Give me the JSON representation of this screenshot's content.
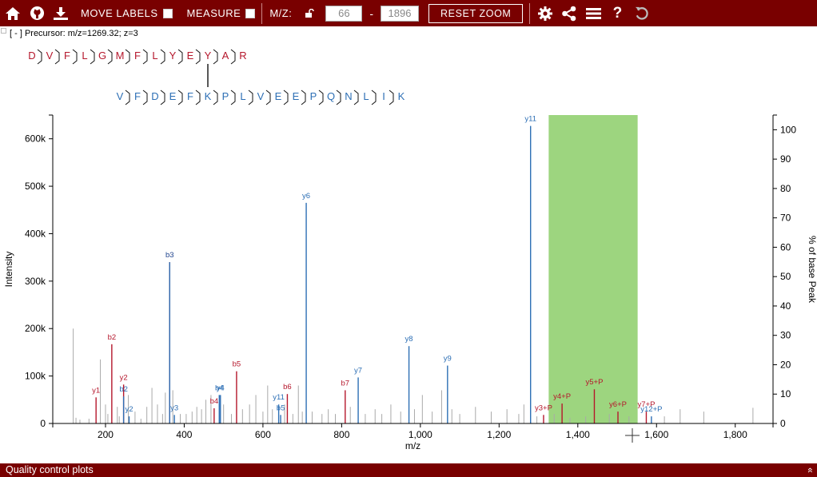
{
  "toolbar": {
    "move_labels": "MOVE LABELS",
    "measure": "MEASURE",
    "mz_label": "M/Z:",
    "mz_min": "66",
    "mz_max": "1896",
    "dash": "-",
    "reset_zoom": "RESET ZOOM",
    "help": "?"
  },
  "precursor": "[ - ]  Precursor: m/z=1269.32; z=3",
  "footer": {
    "title": "Quality control plots",
    "chevron": "«"
  },
  "peptide1": [
    "D",
    "V",
    "F",
    "L",
    "G",
    "M",
    "F",
    "L",
    "Y",
    "E",
    "Y",
    "A",
    "R"
  ],
  "peptide2": [
    "V",
    "F",
    "D",
    "E",
    "F",
    "K",
    "P",
    "L",
    "V",
    "E",
    "E",
    "P",
    "Q",
    "N",
    "L",
    "I",
    "K"
  ],
  "colors": {
    "red": "#b5172c",
    "blue": "#2d6fb5",
    "grey": "#a9a9a9",
    "highlight": "#9dd57f",
    "brand": "#790000"
  },
  "chart_data": {
    "type": "bar",
    "xlabel": "m/z",
    "ylabel": "Intensity",
    "y2label": "% of base Peak",
    "xlim": [
      66,
      1896
    ],
    "ylim": [
      0,
      650000
    ],
    "y2lim": [
      0,
      105
    ],
    "x_ticks": [
      "200",
      "400",
      "600",
      "800",
      "1,000",
      "1,200",
      "1,400",
      "1,600",
      "1,800"
    ],
    "x_tick_values": [
      200,
      400,
      600,
      800,
      1000,
      1200,
      1400,
      1600,
      1800
    ],
    "y_ticks": [
      "0",
      "100k",
      "200k",
      "300k",
      "400k",
      "500k",
      "600k"
    ],
    "y_tick_values": [
      0,
      100000,
      200000,
      300000,
      400000,
      500000,
      600000
    ],
    "y2_ticks": [
      "0",
      "10",
      "20",
      "30",
      "40",
      "50",
      "60",
      "70",
      "80",
      "90",
      "100"
    ],
    "y2_tick_values": [
      0,
      10,
      20,
      30,
      40,
      50,
      60,
      70,
      80,
      90,
      100
    ],
    "highlight_range": [
      1326,
      1552
    ],
    "labeled_peaks": [
      {
        "label": "y1",
        "mz": 176,
        "intensity": 55000,
        "color": "red"
      },
      {
        "label": "b2",
        "mz": 216,
        "intensity": 167000,
        "color": "red"
      },
      {
        "label": "y2",
        "mz": 246,
        "intensity": 82000,
        "color": "red"
      },
      {
        "label": "b2",
        "mz": 246,
        "intensity": 57000,
        "color": "blue"
      },
      {
        "label": "y2",
        "mz": 260,
        "intensity": 15000,
        "color": "blue"
      },
      {
        "label": "b3",
        "mz": 363,
        "intensity": 340000,
        "color": "red"
      },
      {
        "label": "b3",
        "mz": 363,
        "intensity": 340000,
        "color": "blue"
      },
      {
        "label": "y3",
        "mz": 375,
        "intensity": 18000,
        "color": "blue"
      },
      {
        "label": "b4",
        "mz": 476,
        "intensity": 32000,
        "color": "red"
      },
      {
        "label": "b4",
        "mz": 489,
        "intensity": 60000,
        "color": "blue"
      },
      {
        "label": "y4",
        "mz": 492,
        "intensity": 60000,
        "color": "blue"
      },
      {
        "label": "b5",
        "mz": 533,
        "intensity": 110000,
        "color": "red"
      },
      {
        "label": "y11",
        "mz": 640,
        "intensity": 40000,
        "color": "blue"
      },
      {
        "label": "b5",
        "mz": 645,
        "intensity": 18000,
        "color": "blue"
      },
      {
        "label": "b6",
        "mz": 662,
        "intensity": 62000,
        "color": "red"
      },
      {
        "label": "y6",
        "mz": 710,
        "intensity": 465000,
        "color": "blue"
      },
      {
        "label": "b7",
        "mz": 809,
        "intensity": 70000,
        "color": "red"
      },
      {
        "label": "y7",
        "mz": 842,
        "intensity": 97000,
        "color": "blue"
      },
      {
        "label": "y8",
        "mz": 971,
        "intensity": 163000,
        "color": "blue"
      },
      {
        "label": "y9",
        "mz": 1069,
        "intensity": 122000,
        "color": "blue"
      },
      {
        "label": "y11",
        "mz": 1280,
        "intensity": 627000,
        "color": "blue"
      },
      {
        "label": "y3+P",
        "mz": 1313,
        "intensity": 18000,
        "color": "red"
      },
      {
        "label": "y4+P",
        "mz": 1360,
        "intensity": 42000,
        "color": "red"
      },
      {
        "label": "y5+P",
        "mz": 1442,
        "intensity": 72000,
        "color": "red"
      },
      {
        "label": "y6+P",
        "mz": 1502,
        "intensity": 25000,
        "color": "red"
      },
      {
        "label": "y7+P",
        "mz": 1574,
        "intensity": 25000,
        "color": "red"
      },
      {
        "label": "y12+P",
        "mz": 1587,
        "intensity": 15000,
        "color": "blue"
      }
    ],
    "unlabeled_peaks": [
      {
        "mz": 118,
        "intensity": 200000,
        "color": "grey"
      },
      {
        "mz": 125,
        "intensity": 12000,
        "color": "grey"
      },
      {
        "mz": 135,
        "intensity": 8000,
        "color": "grey"
      },
      {
        "mz": 158,
        "intensity": 10000,
        "color": "grey"
      },
      {
        "mz": 187,
        "intensity": 135000,
        "color": "grey"
      },
      {
        "mz": 200,
        "intensity": 40000,
        "color": "grey"
      },
      {
        "mz": 206,
        "intensity": 20000,
        "color": "grey"
      },
      {
        "mz": 230,
        "intensity": 35000,
        "color": "grey"
      },
      {
        "mz": 235,
        "intensity": 15000,
        "color": "grey"
      },
      {
        "mz": 258,
        "intensity": 60000,
        "color": "grey"
      },
      {
        "mz": 275,
        "intensity": 25000,
        "color": "grey"
      },
      {
        "mz": 290,
        "intensity": 10000,
        "color": "grey"
      },
      {
        "mz": 305,
        "intensity": 35000,
        "color": "grey"
      },
      {
        "mz": 318,
        "intensity": 75000,
        "color": "grey"
      },
      {
        "mz": 332,
        "intensity": 40000,
        "color": "grey"
      },
      {
        "mz": 345,
        "intensity": 20000,
        "color": "grey"
      },
      {
        "mz": 352,
        "intensity": 65000,
        "color": "grey"
      },
      {
        "mz": 371,
        "intensity": 70000,
        "color": "grey"
      },
      {
        "mz": 390,
        "intensity": 20000,
        "color": "grey"
      },
      {
        "mz": 405,
        "intensity": 20000,
        "color": "grey"
      },
      {
        "mz": 420,
        "intensity": 25000,
        "color": "grey"
      },
      {
        "mz": 432,
        "intensity": 35000,
        "color": "grey"
      },
      {
        "mz": 444,
        "intensity": 30000,
        "color": "grey"
      },
      {
        "mz": 455,
        "intensity": 50000,
        "color": "grey"
      },
      {
        "mz": 468,
        "intensity": 60000,
        "color": "grey"
      },
      {
        "mz": 500,
        "intensity": 40000,
        "color": "grey"
      },
      {
        "mz": 520,
        "intensity": 20000,
        "color": "grey"
      },
      {
        "mz": 548,
        "intensity": 30000,
        "color": "grey"
      },
      {
        "mz": 566,
        "intensity": 40000,
        "color": "grey"
      },
      {
        "mz": 582,
        "intensity": 60000,
        "color": "grey"
      },
      {
        "mz": 600,
        "intensity": 25000,
        "color": "grey"
      },
      {
        "mz": 612,
        "intensity": 80000,
        "color": "grey"
      },
      {
        "mz": 624,
        "intensity": 30000,
        "color": "grey"
      },
      {
        "mz": 655,
        "intensity": 40000,
        "color": "grey"
      },
      {
        "mz": 676,
        "intensity": 20000,
        "color": "grey"
      },
      {
        "mz": 690,
        "intensity": 80000,
        "color": "grey"
      },
      {
        "mz": 700,
        "intensity": 25000,
        "color": "grey"
      },
      {
        "mz": 725,
        "intensity": 25000,
        "color": "grey"
      },
      {
        "mz": 750,
        "intensity": 20000,
        "color": "grey"
      },
      {
        "mz": 766,
        "intensity": 30000,
        "color": "grey"
      },
      {
        "mz": 784,
        "intensity": 20000,
        "color": "grey"
      },
      {
        "mz": 822,
        "intensity": 35000,
        "color": "grey"
      },
      {
        "mz": 860,
        "intensity": 20000,
        "color": "grey"
      },
      {
        "mz": 885,
        "intensity": 30000,
        "color": "grey"
      },
      {
        "mz": 902,
        "intensity": 20000,
        "color": "grey"
      },
      {
        "mz": 925,
        "intensity": 40000,
        "color": "grey"
      },
      {
        "mz": 950,
        "intensity": 25000,
        "color": "grey"
      },
      {
        "mz": 985,
        "intensity": 30000,
        "color": "grey"
      },
      {
        "mz": 1005,
        "intensity": 60000,
        "color": "grey"
      },
      {
        "mz": 1030,
        "intensity": 25000,
        "color": "grey"
      },
      {
        "mz": 1054,
        "intensity": 70000,
        "color": "grey"
      },
      {
        "mz": 1080,
        "intensity": 30000,
        "color": "grey"
      },
      {
        "mz": 1100,
        "intensity": 20000,
        "color": "grey"
      },
      {
        "mz": 1140,
        "intensity": 35000,
        "color": "grey"
      },
      {
        "mz": 1180,
        "intensity": 25000,
        "color": "grey"
      },
      {
        "mz": 1220,
        "intensity": 30000,
        "color": "grey"
      },
      {
        "mz": 1250,
        "intensity": 20000,
        "color": "grey"
      },
      {
        "mz": 1263,
        "intensity": 40000,
        "color": "grey"
      },
      {
        "mz": 1296,
        "intensity": 15000,
        "color": "grey"
      },
      {
        "mz": 1340,
        "intensity": 20000,
        "color": "grey"
      },
      {
        "mz": 1380,
        "intensity": 12000,
        "color": "grey"
      },
      {
        "mz": 1420,
        "intensity": 15000,
        "color": "grey"
      },
      {
        "mz": 1480,
        "intensity": 20000,
        "color": "grey"
      },
      {
        "mz": 1530,
        "intensity": 15000,
        "color": "grey"
      },
      {
        "mz": 1620,
        "intensity": 15000,
        "color": "grey"
      },
      {
        "mz": 1660,
        "intensity": 30000,
        "color": "grey"
      },
      {
        "mz": 1720,
        "intensity": 25000,
        "color": "grey"
      },
      {
        "mz": 1845,
        "intensity": 33000,
        "color": "grey"
      }
    ]
  }
}
